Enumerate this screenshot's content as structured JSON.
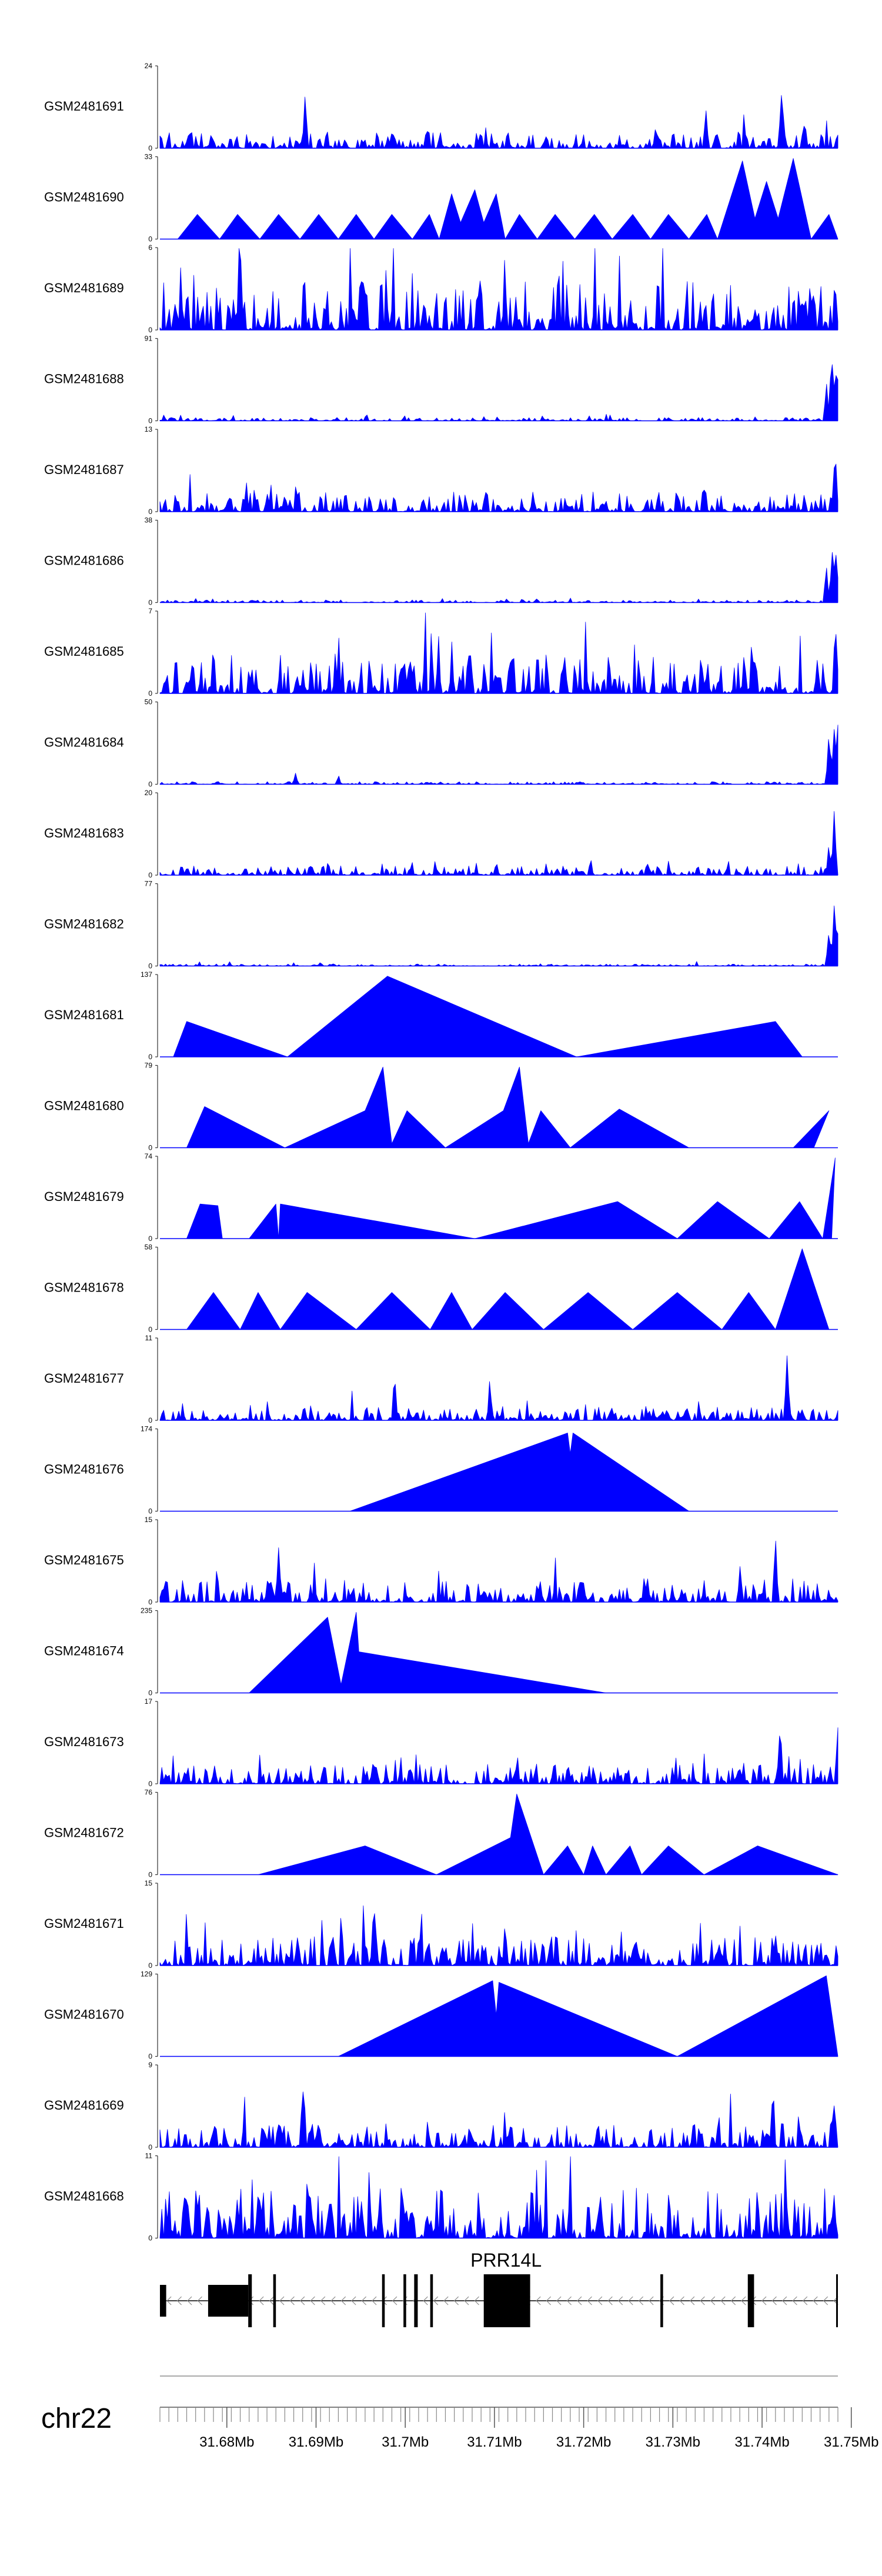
{
  "chart_data": {
    "type": "area",
    "title": "",
    "chromosome": "chr22",
    "xunit": "Mb",
    "xlim": [
      31.6725,
      31.7485
    ],
    "xticks": [
      31.68,
      31.69,
      31.7,
      31.71,
      31.72,
      31.73,
      31.74,
      31.75
    ],
    "xtick_labels": [
      "31.68Mb",
      "31.69Mb",
      "31.7Mb",
      "31.71Mb",
      "31.72Mb",
      "31.73Mb",
      "31.74Mb",
      "31.75Mb"
    ],
    "series_color": "#0000ff",
    "gene": {
      "name": "PRR14L",
      "strand": "-",
      "start": 31.6725,
      "end": 31.7485,
      "exons": [
        {
          "start": 31.6725,
          "end": 31.6732,
          "height": 0.6
        },
        {
          "start": 31.6779,
          "end": 31.6824,
          "height": 0.6
        },
        {
          "start": 31.6824,
          "end": 31.6828,
          "height": 1.0
        },
        {
          "start": 31.6852,
          "end": 31.6855,
          "height": 1.0
        },
        {
          "start": 31.6974,
          "end": 31.6977,
          "height": 1.0
        },
        {
          "start": 31.6998,
          "end": 31.7001,
          "height": 1.0
        },
        {
          "start": 31.701,
          "end": 31.7014,
          "height": 1.0
        },
        {
          "start": 31.7028,
          "end": 31.7031,
          "height": 1.0
        },
        {
          "start": 31.7088,
          "end": 31.714,
          "height": 1.0
        },
        {
          "start": 31.7286,
          "end": 31.7289,
          "height": 1.0
        },
        {
          "start": 31.7384,
          "end": 31.7391,
          "height": 1.0
        },
        {
          "start": 31.7483,
          "end": 31.7485,
          "height": 1.0
        }
      ]
    },
    "tracks": [
      {
        "name": "GSM2481691",
        "ymax": 24,
        "style": "dense",
        "seed": 11,
        "bg": 0.12,
        "peaks": [
          [
            31.6888,
            0.75
          ],
          [
            31.7337,
            0.55
          ],
          [
            31.7422,
            0.95
          ],
          [
            31.7448,
            0.4
          ]
        ]
      },
      {
        "name": "GSM2481690",
        "ymax": 33,
        "style": "tri",
        "seed": 12,
        "vertices": [
          [
            31.6745,
            0
          ],
          [
            31.6767,
            0.3
          ],
          [
            31.6792,
            0
          ],
          [
            31.6812,
            0.3
          ],
          [
            31.6837,
            0
          ],
          [
            31.6858,
            0.3
          ],
          [
            31.6882,
            0
          ],
          [
            31.6903,
            0.3
          ],
          [
            31.6925,
            0
          ],
          [
            31.6945,
            0.3
          ],
          [
            31.6965,
            0
          ],
          [
            31.6985,
            0.3
          ],
          [
            31.7008,
            0
          ],
          [
            31.7027,
            0.3
          ],
          [
            31.7038,
            0
          ],
          [
            31.7052,
            0.55
          ],
          [
            31.7062,
            0.2
          ],
          [
            31.7078,
            0.6
          ],
          [
            31.7088,
            0.2
          ],
          [
            31.7102,
            0.55
          ],
          [
            31.7112,
            0
          ],
          [
            31.7128,
            0.3
          ],
          [
            31.7148,
            0
          ],
          [
            31.7168,
            0.3
          ],
          [
            31.719,
            0
          ],
          [
            31.7212,
            0.3
          ],
          [
            31.7232,
            0
          ],
          [
            31.7255,
            0.3
          ],
          [
            31.7275,
            0
          ],
          [
            31.7295,
            0.3
          ],
          [
            31.7318,
            0
          ],
          [
            31.7338,
            0.3
          ],
          [
            31.735,
            0
          ],
          [
            31.7378,
            0.95
          ],
          [
            31.7392,
            0.25
          ],
          [
            31.7405,
            0.7
          ],
          [
            31.7418,
            0.25
          ],
          [
            31.7435,
            0.98
          ],
          [
            31.7455,
            0
          ],
          [
            31.7475,
            0.3
          ],
          [
            31.7485,
            0
          ]
        ]
      },
      {
        "name": "GSM2481689",
        "ymax": 6,
        "style": "dense",
        "seed": 13,
        "bg": 0.38,
        "peaks": [
          [
            31.6952,
            0.98
          ],
          [
            31.7448,
            0.5
          ],
          [
            31.7482,
            0.8
          ]
        ]
      },
      {
        "name": "GSM2481688",
        "ymax": 91,
        "style": "dense",
        "seed": 14,
        "bg": 0.025,
        "peaks": [
          [
            31.7472,
            0.55
          ],
          [
            31.7478,
            0.95
          ],
          [
            31.7482,
            0.85
          ],
          [
            31.7485,
            0.6
          ]
        ]
      },
      {
        "name": "GSM2481687",
        "ymax": 13,
        "style": "dense",
        "seed": 15,
        "bg": 0.15,
        "peaks": [
          [
            31.6865,
            0.3
          ],
          [
            31.7336,
            0.45
          ],
          [
            31.7482,
            0.98
          ]
        ]
      },
      {
        "name": "GSM2481686",
        "ymax": 38,
        "style": "dense",
        "seed": 16,
        "bg": 0.02,
        "peaks": [
          [
            31.7472,
            0.55
          ],
          [
            31.7479,
            0.95
          ],
          [
            31.7483,
            0.8
          ]
        ]
      },
      {
        "name": "GSM2481685",
        "ymax": 7,
        "style": "dense",
        "seed": 17,
        "bg": 0.3,
        "peaks": [
          [
            31.6785,
            0.75
          ],
          [
            31.7005,
            0.55
          ],
          [
            31.7462,
            0.5
          ],
          [
            31.7482,
            0.98
          ]
        ]
      },
      {
        "name": "GSM2481684",
        "ymax": 50,
        "style": "dense",
        "seed": 18,
        "bg": 0.02,
        "peaks": [
          [
            31.6877,
            0.15
          ],
          [
            31.6925,
            0.12
          ],
          [
            31.7475,
            0.75
          ],
          [
            31.7481,
            0.98
          ],
          [
            31.7485,
            0.8
          ]
        ]
      },
      {
        "name": "GSM2481683",
        "ymax": 20,
        "style": "dense",
        "seed": 19,
        "bg": 0.07,
        "peaks": [
          [
            31.6895,
            0.18
          ],
          [
            31.7475,
            0.45
          ],
          [
            31.7481,
            0.98
          ]
        ]
      },
      {
        "name": "GSM2481682",
        "ymax": 77,
        "style": "dense",
        "seed": 20,
        "bg": 0.015,
        "peaks": [
          [
            31.6905,
            0.06
          ],
          [
            31.7475,
            0.6
          ],
          [
            31.7481,
            0.98
          ],
          [
            31.7485,
            0.5
          ]
        ]
      },
      {
        "name": "GSM2481681",
        "ymax": 137,
        "style": "tri",
        "seed": 21,
        "vertices": [
          [
            31.674,
            0
          ],
          [
            31.6755,
            0.43
          ],
          [
            31.6868,
            0
          ],
          [
            31.698,
            0.98
          ],
          [
            31.7192,
            0
          ],
          [
            31.7415,
            0.43
          ],
          [
            31.7445,
            0
          ]
        ]
      },
      {
        "name": "GSM2481680",
        "ymax": 79,
        "style": "tri",
        "seed": 22,
        "vertices": [
          [
            31.6755,
            0
          ],
          [
            31.6775,
            0.5
          ],
          [
            31.6865,
            0
          ],
          [
            31.6955,
            0.45
          ],
          [
            31.6975,
            0.98
          ],
          [
            31.6985,
            0.05
          ],
          [
            31.7002,
            0.45
          ],
          [
            31.7045,
            0
          ],
          [
            31.711,
            0.45
          ],
          [
            31.7128,
            0.98
          ],
          [
            31.7138,
            0.05
          ],
          [
            31.7152,
            0.45
          ],
          [
            31.7185,
            0
          ],
          [
            31.724,
            0.47
          ],
          [
            31.7318,
            0
          ],
          [
            31.7435,
            0
          ],
          [
            31.7475,
            0.45
          ],
          [
            31.7458,
            0
          ]
        ]
      },
      {
        "name": "GSM2481679",
        "ymax": 74,
        "style": "tri",
        "seed": 23,
        "vertices": [
          [
            31.6755,
            0
          ],
          [
            31.677,
            0.42
          ],
          [
            31.679,
            0.4
          ],
          [
            31.6795,
            0
          ],
          [
            31.6825,
            0
          ],
          [
            31.6855,
            0.42
          ],
          [
            31.6858,
            0
          ],
          [
            31.686,
            0.42
          ],
          [
            31.7078,
            0
          ],
          [
            31.7238,
            0.45
          ],
          [
            31.7305,
            0
          ],
          [
            31.735,
            0.45
          ],
          [
            31.7408,
            0
          ],
          [
            31.7442,
            0.45
          ],
          [
            31.7468,
            0
          ],
          [
            31.7482,
            0.98
          ],
          [
            31.7478,
            0
          ]
        ]
      },
      {
        "name": "GSM2481678",
        "ymax": 58,
        "style": "tri",
        "seed": 24,
        "vertices": [
          [
            31.6755,
            0
          ],
          [
            31.6785,
            0.45
          ],
          [
            31.6815,
            0
          ],
          [
            31.6835,
            0.45
          ],
          [
            31.686,
            0
          ],
          [
            31.689,
            0.45
          ],
          [
            31.6945,
            0
          ],
          [
            31.6985,
            0.45
          ],
          [
            31.7028,
            0
          ],
          [
            31.7052,
            0.45
          ],
          [
            31.7075,
            0
          ],
          [
            31.7112,
            0.45
          ],
          [
            31.7155,
            0
          ],
          [
            31.7205,
            0.45
          ],
          [
            31.7255,
            0
          ],
          [
            31.7305,
            0.45
          ],
          [
            31.7355,
            0
          ],
          [
            31.7385,
            0.45
          ],
          [
            31.7415,
            0
          ],
          [
            31.7445,
            0.98
          ],
          [
            31.7475,
            0
          ]
        ]
      },
      {
        "name": "GSM2481677",
        "ymax": 11,
        "style": "dense",
        "seed": 25,
        "bg": 0.1,
        "peaks": [
          [
            31.6988,
            0.7
          ],
          [
            31.7095,
            0.6
          ],
          [
            31.7428,
            0.92
          ]
        ]
      },
      {
        "name": "GSM2481676",
        "ymax": 174,
        "style": "tri",
        "seed": 26,
        "vertices": [
          [
            31.6938,
            0
          ],
          [
            31.7182,
            0.95
          ],
          [
            31.7185,
            0.7
          ],
          [
            31.7188,
            0.95
          ],
          [
            31.7318,
            0
          ]
        ]
      },
      {
        "name": "GSM2481675",
        "ymax": 15,
        "style": "dense",
        "seed": 27,
        "bg": 0.18,
        "peaks": [
          [
            31.6858,
            0.75
          ],
          [
            31.7415,
            0.95
          ]
        ]
      },
      {
        "name": "GSM2481674",
        "ymax": 235,
        "style": "tri",
        "seed": 28,
        "vertices": [
          [
            31.6825,
            0
          ],
          [
            31.6913,
            0.92
          ],
          [
            31.6928,
            0.1
          ],
          [
            31.6945,
            0.98
          ],
          [
            31.6948,
            0.5
          ],
          [
            31.7225,
            0
          ]
        ]
      },
      {
        "name": "GSM2481673",
        "ymax": 17,
        "style": "dense",
        "seed": 29,
        "bg": 0.15,
        "peaks": [
          [
            31.742,
            0.95
          ],
          [
            31.7485,
            0.78
          ]
        ]
      },
      {
        "name": "GSM2481672",
        "ymax": 76,
        "style": "tri",
        "seed": 30,
        "vertices": [
          [
            31.6835,
            0
          ],
          [
            31.6955,
            0.35
          ],
          [
            31.7035,
            0
          ],
          [
            31.7118,
            0.45
          ],
          [
            31.7125,
            0.98
          ],
          [
            31.7155,
            0
          ],
          [
            31.7182,
            0.35
          ],
          [
            31.72,
            0
          ],
          [
            31.721,
            0.35
          ],
          [
            31.7225,
            0
          ],
          [
            31.7252,
            0.35
          ],
          [
            31.7265,
            0
          ],
          [
            31.7295,
            0.35
          ],
          [
            31.7335,
            0
          ],
          [
            31.7395,
            0.35
          ],
          [
            31.7485,
            0
          ]
        ]
      },
      {
        "name": "GSM2481671",
        "ymax": 15,
        "style": "dense",
        "seed": 31,
        "bg": 0.22,
        "peaks": [
          [
            31.6965,
            0.98
          ],
          [
            31.7112,
            0.6
          ],
          [
            31.7415,
            0.55
          ]
        ]
      },
      {
        "name": "GSM2481670",
        "ymax": 129,
        "style": "tri",
        "seed": 32,
        "vertices": [
          [
            31.6925,
            0
          ],
          [
            31.7098,
            0.92
          ],
          [
            31.7102,
            0.5
          ],
          [
            31.7105,
            0.9
          ],
          [
            31.7305,
            0
          ],
          [
            31.7472,
            0.98
          ],
          [
            31.7485,
            0
          ]
        ]
      },
      {
        "name": "GSM2481669",
        "ymax": 9,
        "style": "dense",
        "seed": 33,
        "bg": 0.18,
        "peaks": [
          [
            31.6885,
            0.9
          ],
          [
            31.7412,
            0.95
          ],
          [
            31.748,
            0.7
          ]
        ]
      },
      {
        "name": "GSM2481668",
        "ymax": 11,
        "style": "dense",
        "seed": 34,
        "bg": 0.38,
        "peaks": [
          [
            31.6835,
            0.7
          ],
          [
            31.7395,
            0.6
          ]
        ]
      }
    ]
  }
}
